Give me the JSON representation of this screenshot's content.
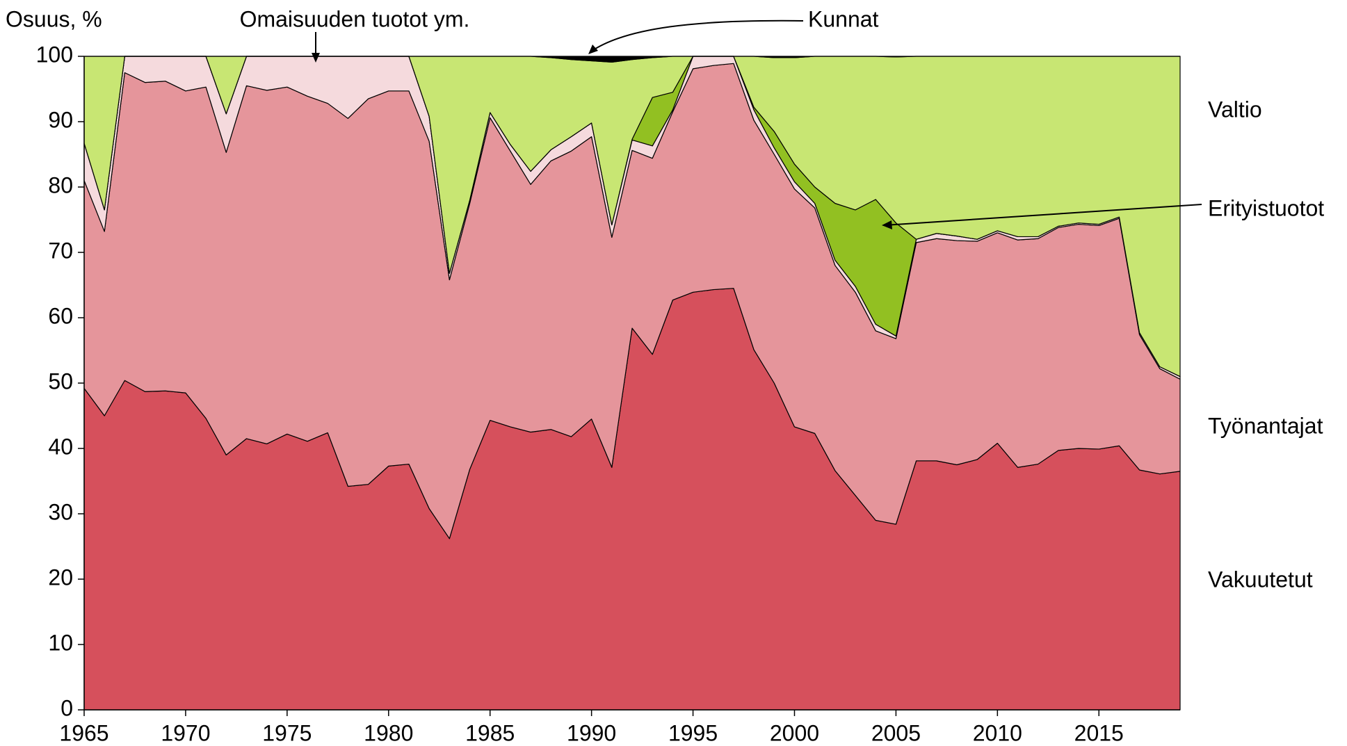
{
  "chart_data": {
    "type": "stacked_area",
    "y_label": "Osuus, %",
    "x": [
      1965,
      1966,
      1967,
      1968,
      1969,
      1970,
      1971,
      1972,
      1973,
      1974,
      1975,
      1976,
      1977,
      1978,
      1979,
      1980,
      1981,
      1982,
      1983,
      1984,
      1985,
      1986,
      1987,
      1988,
      1989,
      1990,
      1991,
      1992,
      1993,
      1994,
      1995,
      1996,
      1997,
      1998,
      1999,
      2000,
      2001,
      2002,
      2003,
      2004,
      2005,
      2006,
      2007,
      2008,
      2009,
      2010,
      2011,
      2012,
      2013,
      2014,
      2015,
      2016,
      2017,
      2018,
      2019
    ],
    "xlim": [
      1965,
      2019
    ],
    "xticks": [
      1965,
      1970,
      1975,
      1980,
      1985,
      1990,
      1995,
      2000,
      2005,
      2010,
      2015
    ],
    "ylim": [
      0,
      100
    ],
    "yticks": [
      0,
      10,
      20,
      30,
      40,
      50,
      60,
      70,
      80,
      90,
      100
    ],
    "series": [
      {
        "name": "Vakuutetut",
        "color": "#d6505c",
        "values": [
          49.2,
          45,
          50.4,
          48.7,
          48.8,
          48.5,
          44.6,
          39,
          41.5,
          40.7,
          42.2,
          41.1,
          42.4,
          34.2,
          34.5,
          37.3,
          37.6,
          30.8,
          26.2,
          36.8,
          44.3,
          43.3,
          42.5,
          42.9,
          41.8,
          44.5,
          37.1,
          58.4,
          54.4,
          62.7,
          63.9,
          64.3,
          64.5,
          55.1,
          50,
          43.3,
          42.3,
          36.6,
          32.8,
          29,
          28.4,
          38.1,
          38.1,
          37.5,
          38.3,
          40.8,
          37.1,
          37.6,
          39.7,
          40,
          39.9,
          40.4,
          36.7,
          36.1,
          36.5
        ]
      },
      {
        "name": "Työnantajat",
        "color": "#e5959b",
        "values": [
          31.8,
          28.2,
          47.1,
          47.3,
          47.4,
          46.2,
          50.7,
          46.3,
          54,
          54.1,
          53.1,
          52.8,
          50.4,
          56.3,
          59,
          57.4,
          57.1,
          56.2,
          39.6,
          40.7,
          46.3,
          42.2,
          37.9,
          41.1,
          43.7,
          43.2,
          35.2,
          27.2,
          30,
          28.8,
          34.2,
          34.3,
          34.4,
          35.1,
          35,
          36.4,
          34.5,
          31.4,
          31.1,
          29,
          28.4,
          33.4,
          34,
          34.3,
          33.4,
          32.2,
          34.8,
          34.5,
          34.1,
          34.3,
          34.2,
          34.8,
          20.7,
          16.1,
          14.1
        ]
      },
      {
        "name": "Omaisuuden tuotot ym.",
        "color": "#f5dadd",
        "values": [
          5.7,
          3.3,
          2.5,
          4,
          3.8,
          5.3,
          4.7,
          5.9,
          4.5,
          5.2,
          4.7,
          6.1,
          7.2,
          9.5,
          6.5,
          5.3,
          5.3,
          3.8,
          1,
          0.5,
          0.8,
          1,
          2,
          1.7,
          2.2,
          2.1,
          1.9,
          1.6,
          1.9,
          0.3,
          1.9,
          1.4,
          1.1,
          1.6,
          1,
          1.1,
          0.7,
          0.8,
          0.9,
          1,
          0.4,
          0.5,
          0.8,
          0.7,
          0.3,
          0.3,
          0.5,
          0.3,
          0.2,
          0.2,
          0.2,
          0.2,
          0.3,
          0.3,
          0.4
        ]
      },
      {
        "name": "Erityistuotot",
        "color": "#92c022",
        "values": [
          0,
          0,
          0,
          0,
          0,
          0,
          0,
          0,
          0,
          0,
          0,
          0,
          0,
          0,
          0,
          0,
          0,
          0,
          0,
          0,
          0,
          0,
          0,
          0,
          0,
          0,
          0,
          0.1,
          7.4,
          2.7,
          0,
          0,
          0,
          0.4,
          2.5,
          2.7,
          2.5,
          8.7,
          11.7,
          19.1,
          17.3,
          0,
          0,
          0,
          0,
          0,
          0,
          0,
          0,
          0,
          0,
          0,
          0,
          0,
          0
        ]
      },
      {
        "name": "Valtio",
        "color": "#c8e673",
        "values": [
          13.3,
          23.5,
          0,
          0,
          0,
          0,
          0,
          8.8,
          0,
          0,
          0,
          0,
          0,
          0,
          0,
          0,
          0,
          9.2,
          33.2,
          22,
          8.6,
          13.5,
          17.6,
          14.1,
          11.8,
          9.5,
          24.9,
          12.2,
          6.1,
          5.5,
          0,
          0,
          0,
          7.8,
          11.3,
          16.3,
          20,
          22.5,
          23.5,
          21.9,
          25.4,
          28,
          27.1,
          27.5,
          28,
          26.7,
          27.6,
          27.6,
          26,
          25.5,
          25.7,
          24.6,
          42.3,
          47.5,
          49
        ]
      },
      {
        "name": "Kunnat",
        "color": "#000000",
        "values": [
          0,
          0,
          0,
          0,
          0,
          0,
          0,
          0,
          0,
          0,
          0,
          0,
          0,
          0,
          0,
          0,
          0,
          0,
          0,
          0,
          0,
          0,
          0,
          0.2,
          0.5,
          0.7,
          0.9,
          0.5,
          0.2,
          0,
          0,
          0,
          0,
          0,
          0.2,
          0.2,
          0,
          0,
          0,
          0,
          0.1,
          0,
          0,
          0,
          0,
          0,
          0,
          0,
          0,
          0,
          0,
          0,
          0,
          0,
          0
        ]
      }
    ]
  }
}
